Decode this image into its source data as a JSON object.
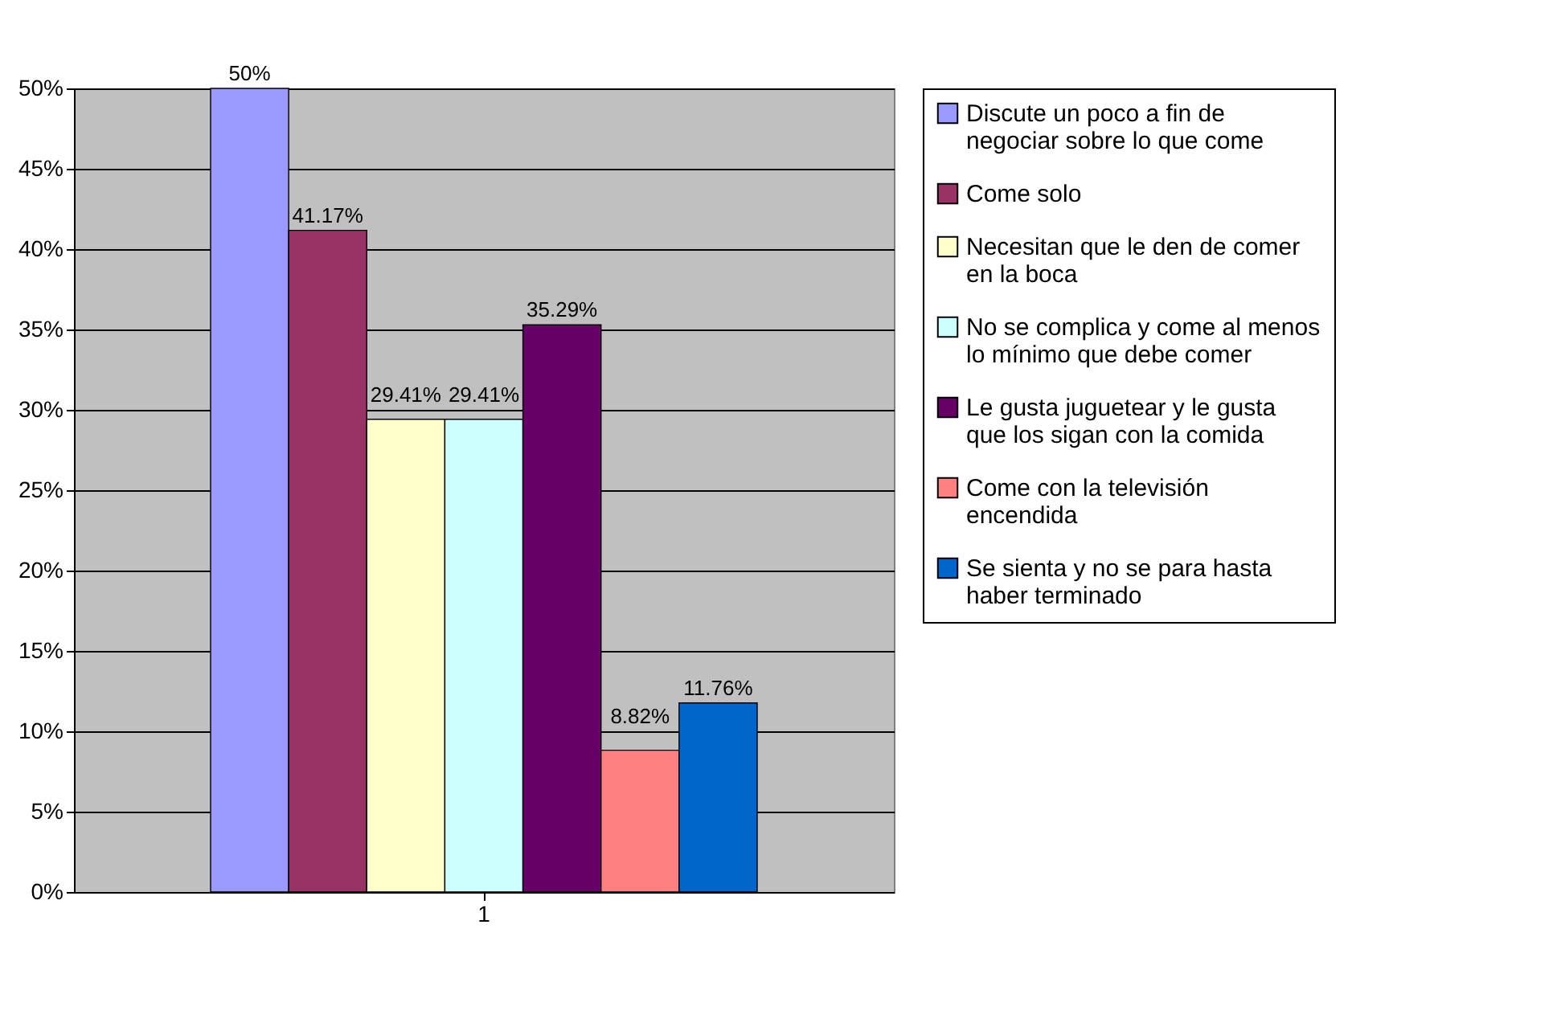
{
  "chart_data": {
    "type": "bar",
    "categories": [
      "1"
    ],
    "series": [
      {
        "name": "Discute un poco a fin de negociar sobre lo que come",
        "color": "#9999ff",
        "values": [
          50
        ],
        "value_labels": [
          "50%"
        ]
      },
      {
        "name": "Come solo",
        "color": "#993366",
        "values": [
          41.17
        ],
        "value_labels": [
          "41.17%"
        ]
      },
      {
        "name": "Necesitan que le den de comer en la boca",
        "color": "#ffffcc",
        "values": [
          29.41
        ],
        "value_labels": [
          "29.41%"
        ]
      },
      {
        "name": "No se complica y come al menos lo mínimo que debe comer",
        "color": "#ccffff",
        "values": [
          29.41
        ],
        "value_labels": [
          "29.41%"
        ]
      },
      {
        "name": "Le gusta juguetear y le gusta que los sigan con la comida",
        "color": "#660066",
        "values": [
          35.29
        ],
        "value_labels": [
          "35.29%"
        ]
      },
      {
        "name": "Come con la televisión encendida",
        "color": "#ff8080",
        "values": [
          8.82
        ],
        "value_labels": [
          "8.82%"
        ]
      },
      {
        "name": "Se sienta y no se para hasta haber terminado",
        "color": "#0066cc",
        "values": [
          11.76
        ],
        "value_labels": [
          "11.76%"
        ]
      }
    ],
    "ylim": [
      0,
      50
    ],
    "yticks": [
      {
        "value": 0,
        "label": "0%"
      },
      {
        "value": 5,
        "label": "5%"
      },
      {
        "value": 10,
        "label": "10%"
      },
      {
        "value": 15,
        "label": "15%"
      },
      {
        "value": 20,
        "label": "20%"
      },
      {
        "value": 25,
        "label": "25%"
      },
      {
        "value": 30,
        "label": "30%"
      },
      {
        "value": 35,
        "label": "35%"
      },
      {
        "value": 40,
        "label": "40%"
      },
      {
        "value": 45,
        "label": "45%"
      },
      {
        "value": 50,
        "label": "50%"
      }
    ],
    "grid": "y",
    "legend": "right"
  }
}
